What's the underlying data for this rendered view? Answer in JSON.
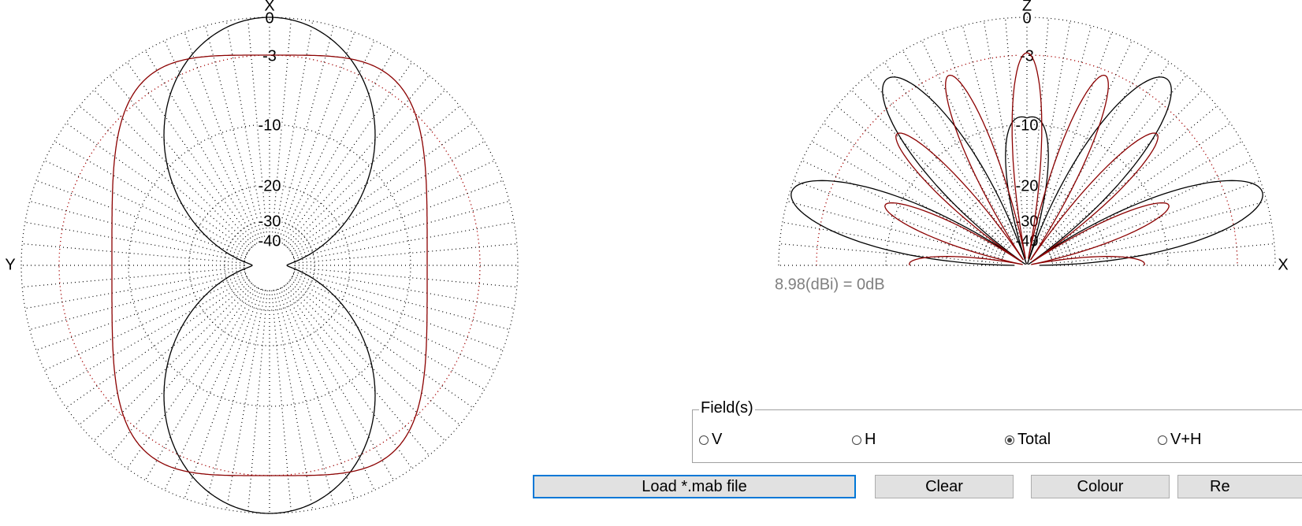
{
  "left_plot": {
    "axis_top": "X",
    "axis_left": "Y",
    "ring_labels": [
      "0",
      "-3",
      "-10",
      "-20",
      "-30",
      "-40"
    ]
  },
  "right_plot": {
    "axis_top": "Z",
    "axis_right": "X",
    "ring_labels": [
      "0",
      "-3",
      "-10",
      "-20",
      "-30",
      "-40"
    ],
    "gain_note": "8.98(dBi) = 0dB"
  },
  "fields": {
    "legend": "Field(s)",
    "options": [
      "V",
      "H",
      "Total",
      "V+H"
    ]
  },
  "buttons": [
    "Load *.mab file",
    "Clear",
    "Colour",
    "Re"
  ]
}
